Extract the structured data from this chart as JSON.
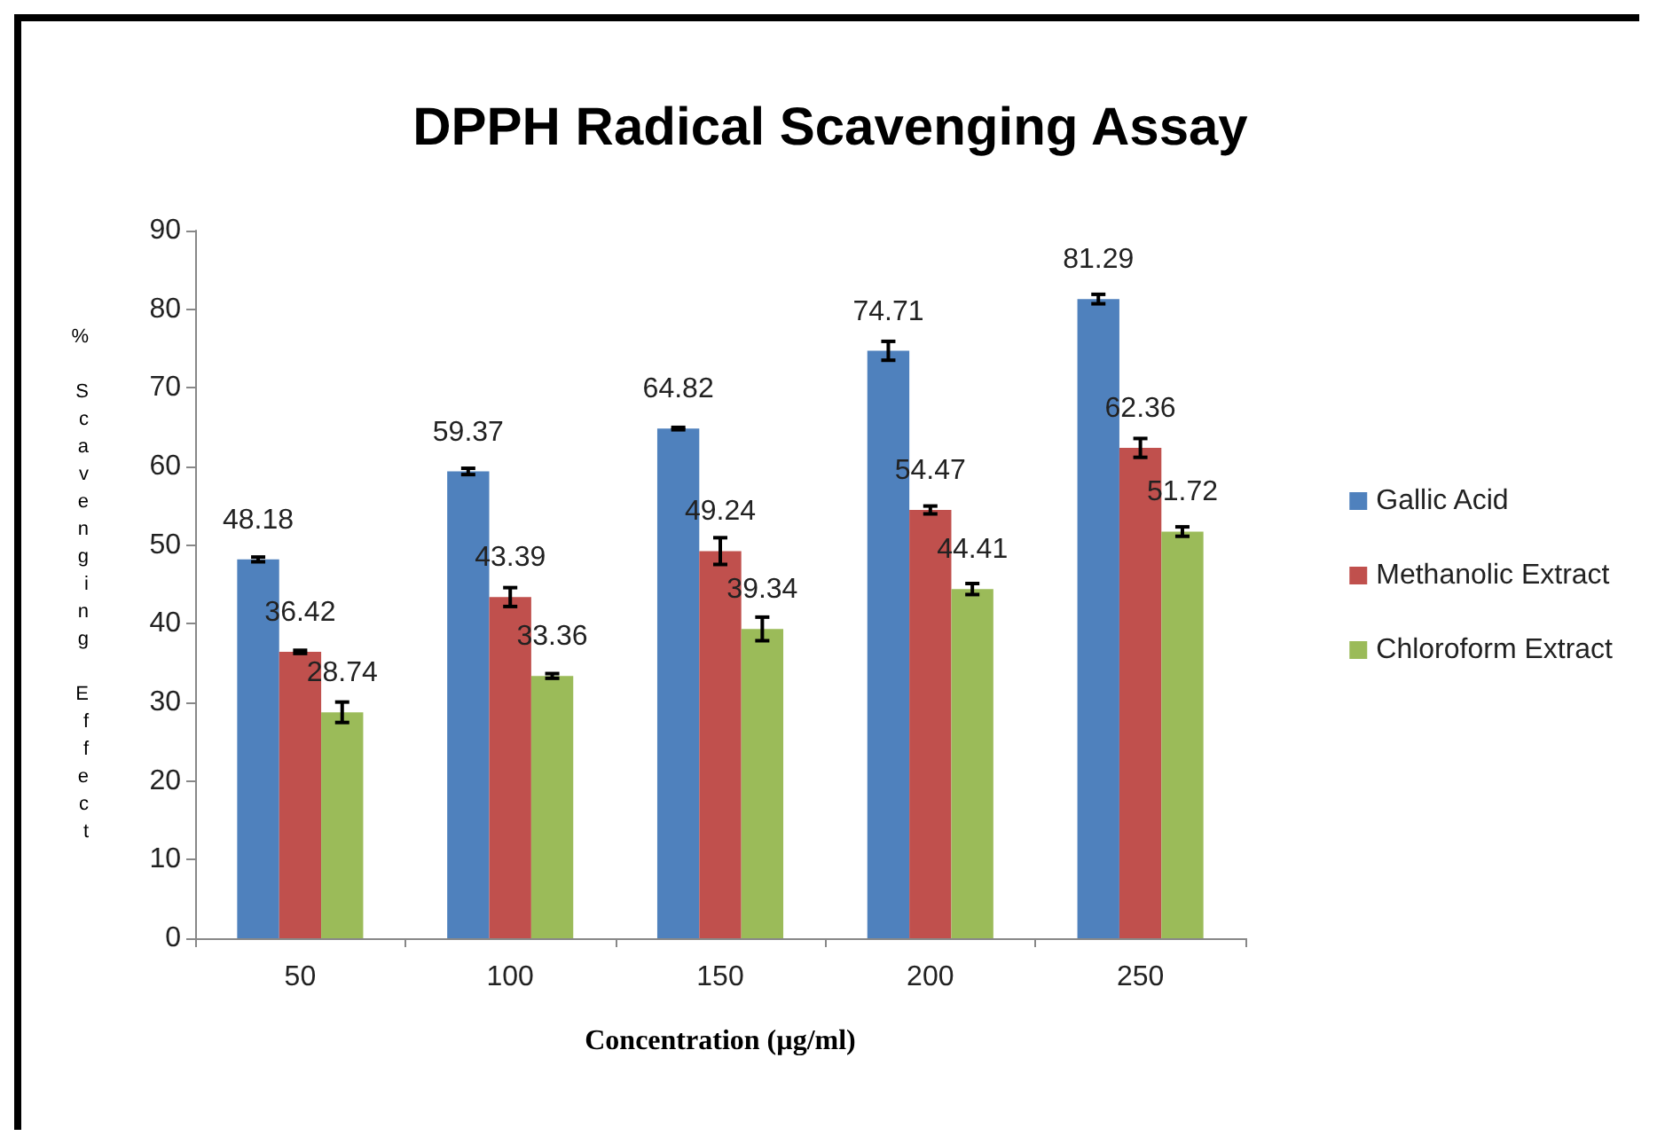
{
  "chart_data": {
    "type": "bar",
    "title": "DPPH Radical Scavenging Assay",
    "xlabel": "Concentration (µg/ml)",
    "ylabel": "% Scavenging Effect",
    "categories": [
      "50",
      "100",
      "150",
      "200",
      "250"
    ],
    "series": [
      {
        "name": "Gallic Acid",
        "color": "#4f81bd",
        "values": [
          48.18,
          59.37,
          64.82,
          74.71,
          81.29
        ],
        "errors": [
          0.3,
          0.4,
          0.15,
          1.2,
          0.6
        ]
      },
      {
        "name": "Methanolic Extract",
        "color": "#c0504d",
        "values": [
          36.42,
          43.39,
          49.24,
          54.47,
          62.36
        ],
        "errors": [
          0.2,
          1.2,
          1.7,
          0.5,
          1.2
        ]
      },
      {
        "name": "Chloroform Extract",
        "color": "#9bbb59",
        "values": [
          28.74,
          33.36,
          39.34,
          44.41,
          51.72
        ],
        "errors": [
          1.3,
          0.3,
          1.5,
          0.7,
          0.6
        ]
      }
    ],
    "ylim": [
      0,
      90
    ],
    "yticks": [
      0,
      10,
      20,
      30,
      40,
      50,
      60,
      70,
      80,
      90
    ],
    "grid": false,
    "legend": "right",
    "data_labels": true
  }
}
